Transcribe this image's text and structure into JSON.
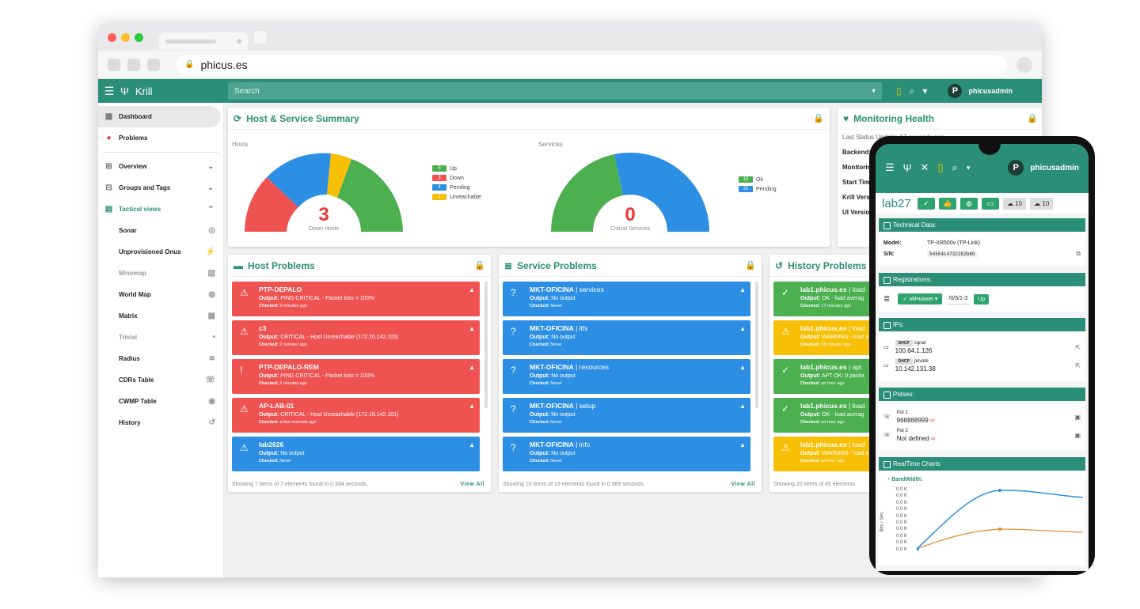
{
  "browser": {
    "url": "phicus.es"
  },
  "app": {
    "brand": "Krill",
    "search_placeholder": "Search",
    "user": "phicusadmin",
    "avatar": "P"
  },
  "sidebar": {
    "items": [
      {
        "label": "Dashboard"
      },
      {
        "label": "Problems"
      },
      {
        "label": "Overview"
      },
      {
        "label": "Groups and Tags"
      },
      {
        "label": "Tactical views"
      },
      {
        "label": "Sonar"
      },
      {
        "label": "Unprovisioned Onus"
      },
      {
        "label": "Minemap"
      },
      {
        "label": "World Map"
      },
      {
        "label": "Matrix"
      },
      {
        "label": "Trivial"
      },
      {
        "label": "Radius"
      },
      {
        "label": "CDRs Table"
      },
      {
        "label": "CWMP Table"
      },
      {
        "label": "History"
      }
    ]
  },
  "summary": {
    "title": "Host & Service Summary",
    "hosts_label": "Hosts",
    "services_label": "Services",
    "down_hosts_value": "3",
    "down_hosts_label": "Down Hosts",
    "critical_value": "0",
    "critical_label": "Critical Services",
    "host_legend": [
      {
        "count": "5",
        "label": "Up",
        "color": "#4caf50"
      },
      {
        "count": "3",
        "label": "Down",
        "color": "#ef5351"
      },
      {
        "count": "4",
        "label": "Pending",
        "color": "#2d8fe3"
      },
      {
        "count": "1",
        "label": "Unreachable",
        "color": "#f7c007"
      }
    ],
    "service_legend": [
      {
        "count": "15",
        "label": "Ok",
        "color": "#4caf50"
      },
      {
        "count": "20",
        "label": "Pending",
        "color": "#2d8fe3"
      }
    ]
  },
  "health": {
    "title": "Monitoring Health",
    "last_update": "Last Status Update: 17 seconds ago",
    "rows": [
      "Backend:",
      "Monitoring",
      "Start Tim",
      "Krill Vers",
      "UI Version"
    ]
  },
  "host_problems": {
    "title": "Host Problems",
    "items": [
      {
        "name": "PTP-DEPALO",
        "sub": "",
        "output": "PING CRITICAL - Packet loss = 100%",
        "checked": "5 minutes ago",
        "color": "red",
        "icon": "⚠"
      },
      {
        "name": "c3",
        "sub": "",
        "output": "CRITICAL - Host Unreachable (172.16.142.105)",
        "checked": "2 minutes ago",
        "color": "red",
        "icon": "⚠"
      },
      {
        "name": "PTP-DEPALO-REM",
        "sub": "",
        "output": "PING CRITICAL - Packet loss = 100%",
        "checked": "2 minutes ago",
        "color": "red",
        "icon": "!"
      },
      {
        "name": "AP-LAB-01",
        "sub": "",
        "output": "CRITICAL - Host Unreachable (172.16.142.101)",
        "checked": "a few seconds ago",
        "color": "red",
        "icon": "⚠"
      },
      {
        "name": "lab2626",
        "sub": "",
        "output": "No output",
        "checked": "Never",
        "color": "blue",
        "icon": "⚠"
      }
    ],
    "footer": "Showing 7 items of 7 elements found in 0.334 seconds.",
    "view_all": "View All"
  },
  "service_problems": {
    "title": "Service Problems",
    "items": [
      {
        "name": "MKT-OFICINA",
        "sub": " | services",
        "output": "No output",
        "checked": "Never",
        "color": "blue",
        "icon": "?"
      },
      {
        "name": "MKT-OFICINA",
        "sub": " | itfs",
        "output": "No output",
        "checked": "Never",
        "color": "blue",
        "icon": "?"
      },
      {
        "name": "MKT-OFICINA",
        "sub": " | resources",
        "output": "No output",
        "checked": "Never",
        "color": "blue",
        "icon": "?"
      },
      {
        "name": "MKT-OFICINA",
        "sub": " | setup",
        "output": "No output",
        "checked": "Never",
        "color": "blue",
        "icon": "?"
      },
      {
        "name": "MKT-OFICINA",
        "sub": " | info",
        "output": "No output",
        "checked": "Never",
        "color": "blue",
        "icon": "?"
      }
    ],
    "footer": "Showing 10 items of 19 elements found in 0.589 seconds.",
    "view_all": "View All"
  },
  "history_problems": {
    "title": "History Problems",
    "items": [
      {
        "name": "lab1.phicus.es",
        "sub": " | load",
        "output": "OK - load averag",
        "checked": "17 minutes ago",
        "color": "green2",
        "icon": "✓"
      },
      {
        "name": "lab1.phicus.es",
        "sub": " | load",
        "output": "WARNING - load a",
        "checked": "18 minutes ago",
        "color": "yellow",
        "icon": "⚠"
      },
      {
        "name": "lab1.phicus.es",
        "sub": " | apt",
        "output": "APT OK: 0 packa",
        "checked": "an hour ago",
        "color": "green2",
        "icon": "✓"
      },
      {
        "name": "lab1.phicus.es",
        "sub": " | load",
        "output": "OK - load averag",
        "checked": "an hour ago",
        "color": "green2",
        "icon": "✓"
      },
      {
        "name": "lab1.phicus.es",
        "sub": " | load",
        "output": "WARNING - load a",
        "checked": "an hour ago",
        "color": "yellow",
        "icon": "⚠"
      }
    ],
    "footer": "Showing 20 items of 45 elements"
  },
  "labels": {
    "output": "Output:",
    "checked": "Checked:"
  },
  "phone": {
    "user": "phicusadmin",
    "avatar": "P",
    "device": "lab27",
    "counts": [
      "10",
      "10"
    ],
    "tech_title": "Technical Data:",
    "model_label": "Model:",
    "model": "TP-XR500v (TP-Link)",
    "sn_label": "S/N:",
    "sn": "54504c47322b2b80",
    "reg_title": "Registrations:",
    "olt": "oltHuawei",
    "port": "/0/5/1-3",
    "port_state": "Up",
    "ips_title": "IPs:",
    "ips": [
      {
        "tag": "DHCP",
        "type": "cgnat",
        "ip": "100.64.1.126"
      },
      {
        "tag": "DHCP",
        "type": "private",
        "ip": "10.142.131.38"
      }
    ],
    "pots_title": "Potses:",
    "pots": [
      {
        "label": "Pot 1",
        "number": "968888999"
      },
      {
        "label": "Pot 2",
        "number": "Not defined"
      }
    ],
    "charts_title": "RealTime Charts",
    "bandwidth": "BandWidth:",
    "yaxis": "Bits / Sec",
    "yticks": [
      "0.0 K",
      "0.0 K",
      "0.0 K",
      "0.0 K",
      "0.0 K",
      "0.0 K",
      "0.0 K",
      "0.0 K",
      "0.0 K",
      "0.0 K"
    ]
  }
}
